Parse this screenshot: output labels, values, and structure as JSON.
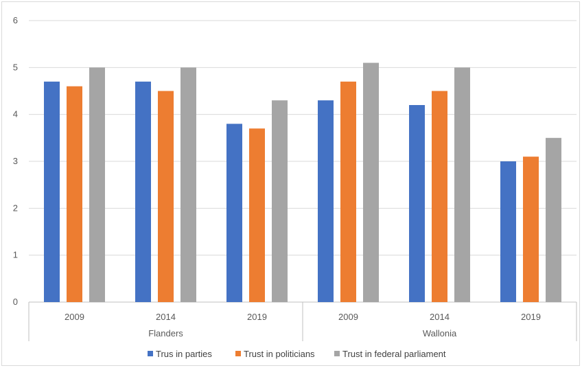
{
  "chart_data": {
    "type": "bar",
    "groups": [
      {
        "label": "Flanders",
        "categories": [
          "2009",
          "2014",
          "2019"
        ]
      },
      {
        "label": "Wallonia",
        "categories": [
          "2009",
          "2014",
          "2019"
        ]
      }
    ],
    "categories": [
      "2009",
      "2014",
      "2019",
      "2009",
      "2014",
      "2019"
    ],
    "series": [
      {
        "name": "Trus in parties",
        "color": "#4472c4",
        "values": [
          4.7,
          4.7,
          3.8,
          4.3,
          4.2,
          3.0
        ]
      },
      {
        "name": "Trust in politicians",
        "color": "#ed7d31",
        "values": [
          4.6,
          4.5,
          3.7,
          4.7,
          4.5,
          3.1
        ]
      },
      {
        "name": "Trust in federal parliament",
        "color": "#a5a5a5",
        "values": [
          5.0,
          5.0,
          4.3,
          5.1,
          5.0,
          3.5
        ]
      }
    ],
    "ylim": [
      0,
      6
    ],
    "yticks": [
      "0",
      "1",
      "2",
      "3",
      "4",
      "5",
      "6"
    ],
    "grid": true,
    "legend": "bottom",
    "title": "",
    "xlabel": "",
    "ylabel": ""
  }
}
